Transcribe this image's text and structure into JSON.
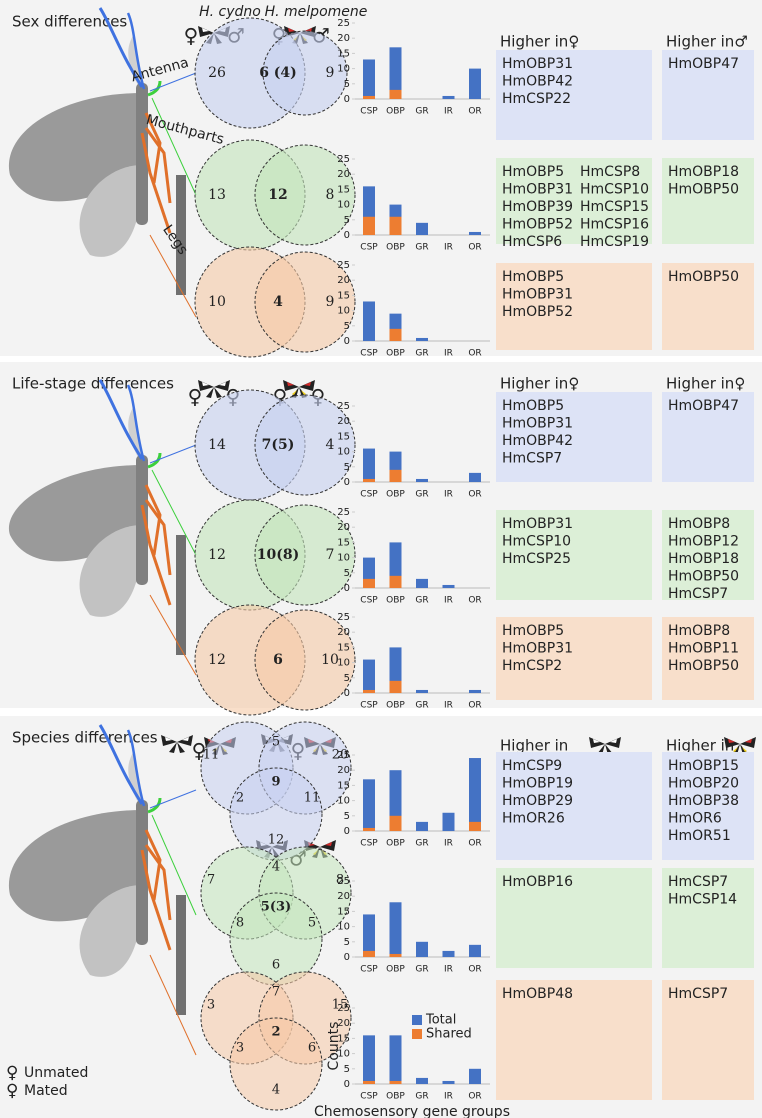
{
  "panels": [
    {
      "title": "Sex differences",
      "species": [
        "H. cydno",
        "H. melpomene"
      ],
      "symbols": [
        "♀",
        "♂",
        "♀",
        "♂"
      ],
      "higher": [
        "Higher in♀",
        "Higher in♂"
      ],
      "tissues": [
        "Antenna",
        "Mouthparts",
        "Legs"
      ],
      "rows": [
        {
          "venn": [
            "26",
            "6 (4)",
            "9"
          ],
          "left": [
            "HmOBP31",
            "HmOBP42",
            "HmCSP22"
          ],
          "right": [
            "HmOBP47"
          ]
        },
        {
          "venn": [
            "13",
            "12",
            "8"
          ],
          "left": [
            "HmOBP5",
            "HmOBP31",
            "HmOBP39",
            "HmOBP52",
            "HmCSP6",
            "HmCSP8",
            "HmCSP10",
            "HmCSP15",
            "HmCSP16",
            "HmCSP19"
          ],
          "right": [
            "HmOBP18",
            "HmOBP50"
          ]
        },
        {
          "venn": [
            "10",
            "4",
            "9"
          ],
          "left": [
            "HmOBP5",
            "HmOBP31",
            "HmOBP52"
          ],
          "right": [
            "HmOBP50"
          ]
        }
      ]
    },
    {
      "title": "Life-stage differences",
      "symbols": [
        "♀",
        "♀",
        "♀",
        "♀"
      ],
      "higher": [
        "Higher in♀",
        "Higher in♀"
      ],
      "rows": [
        {
          "venn": [
            "14",
            "7(5)",
            "4"
          ],
          "left": [
            "HmOBP5",
            "HmOBP31",
            "HmOBP42",
            "HmCSP7"
          ],
          "right": [
            "HmOBP47"
          ]
        },
        {
          "venn": [
            "12",
            "10(8)",
            "7"
          ],
          "left": [
            "HmOBP31",
            "HmCSP10",
            "HmCSP25"
          ],
          "right": [
            "HmOBP8",
            "HmOBP12",
            "HmOBP18",
            "HmOBP50",
            "HmCSP7"
          ]
        },
        {
          "venn": [
            "12",
            "6",
            "10"
          ],
          "left": [
            "HmOBP5",
            "HmOBP31",
            "HmCSP2"
          ],
          "right": [
            "HmOBP8",
            "HmOBP11",
            "HmOBP50"
          ]
        }
      ]
    },
    {
      "title": "Species differences",
      "symbols": [
        "♀",
        "♀",
        "♂"
      ],
      "higher": [
        "Higher in",
        "Higher in"
      ],
      "rows": [
        {
          "venn": [
            "11",
            "5",
            "20",
            "2",
            "9",
            "11",
            "12"
          ],
          "left": [
            "HmCSP9",
            "HmOBP19",
            "HmOBP29",
            "HmOR26"
          ],
          "right": [
            "HmOBP15",
            "HmOBP20",
            "HmOBP38",
            "HmOR6",
            "HmOR51"
          ]
        },
        {
          "venn": [
            "7",
            "4",
            "8",
            "8",
            "5(3)",
            "5",
            "6"
          ],
          "left": [
            "HmOBP16"
          ],
          "right": [
            "HmCSP7",
            "HmCSP14"
          ]
        },
        {
          "venn": [
            "3",
            "7",
            "15",
            "3",
            "2",
            "6",
            "4"
          ],
          "left": [
            "HmOBP48"
          ],
          "right": [
            "HmCSP7"
          ]
        }
      ]
    }
  ],
  "legend": {
    "symbols": [
      "♀",
      "♀"
    ],
    "labels": [
      "Unmated",
      "Mated"
    ]
  },
  "chart_data": [
    {
      "type": "bar",
      "categories": [
        "CSP",
        "OBP",
        "GR",
        "IR",
        "OR"
      ],
      "series": [
        {
          "color": "#4472c4",
          "values": [
            13,
            17,
            0,
            1,
            10
          ]
        },
        {
          "color": "#ed7d31",
          "values": [
            1,
            3,
            0,
            0,
            0
          ]
        }
      ],
      "ylim": [
        0,
        25
      ],
      "yticks": [
        0,
        5,
        10,
        15,
        20,
        25
      ]
    },
    {
      "type": "bar",
      "categories": [
        "CSP",
        "OBP",
        "GR",
        "IR",
        "OR"
      ],
      "series": [
        {
          "color": "#4472c4",
          "values": [
            16,
            10,
            4,
            0,
            1
          ]
        },
        {
          "color": "#ed7d31",
          "values": [
            6,
            6,
            0,
            0,
            0
          ]
        }
      ],
      "ylim": [
        0,
        25
      ],
      "yticks": [
        0,
        5,
        10,
        15,
        20,
        25
      ]
    },
    {
      "type": "bar",
      "categories": [
        "CSP",
        "OBP",
        "GR",
        "IR",
        "OR"
      ],
      "series": [
        {
          "color": "#4472c4",
          "values": [
            13,
            9,
            1,
            0,
            0
          ]
        },
        {
          "color": "#ed7d31",
          "values": [
            0,
            4,
            0,
            0,
            0
          ]
        }
      ],
      "ylim": [
        0,
        25
      ],
      "yticks": [
        0,
        5,
        10,
        15,
        20,
        25
      ]
    },
    {
      "type": "bar",
      "categories": [
        "CSP",
        "OBP",
        "GR",
        "IR",
        "OR"
      ],
      "series": [
        {
          "color": "#4472c4",
          "values": [
            11,
            10,
            1,
            0,
            3
          ]
        },
        {
          "color": "#ed7d31",
          "values": [
            1,
            4,
            0,
            0,
            0
          ]
        }
      ],
      "ylim": [
        0,
        25
      ],
      "yticks": [
        0,
        5,
        10,
        15,
        20,
        25
      ]
    },
    {
      "type": "bar",
      "categories": [
        "CSP",
        "OBP",
        "GR",
        "IR",
        "OR"
      ],
      "series": [
        {
          "color": "#4472c4",
          "values": [
            10,
            15,
            3,
            1,
            0
          ]
        },
        {
          "color": "#ed7d31",
          "values": [
            3,
            4,
            0,
            0,
            0
          ]
        }
      ],
      "ylim": [
        0,
        25
      ],
      "yticks": [
        0,
        5,
        10,
        15,
        20,
        25
      ]
    },
    {
      "type": "bar",
      "categories": [
        "CSP",
        "OBP",
        "GR",
        "IR",
        "OR"
      ],
      "series": [
        {
          "color": "#4472c4",
          "values": [
            11,
            15,
            1,
            0,
            1
          ]
        },
        {
          "color": "#ed7d31",
          "values": [
            1,
            4,
            0,
            0,
            0
          ]
        }
      ],
      "ylim": [
        0,
        25
      ],
      "yticks": [
        0,
        5,
        10,
        15,
        20,
        25
      ]
    },
    {
      "type": "bar",
      "categories": [
        "CSP",
        "OBP",
        "GR",
        "IR",
        "OR"
      ],
      "series": [
        {
          "color": "#4472c4",
          "values": [
            17,
            20,
            3,
            6,
            24
          ]
        },
        {
          "color": "#ed7d31",
          "values": [
            1,
            5,
            0,
            0,
            3
          ]
        }
      ],
      "ylim": [
        0,
        25
      ],
      "yticks": [
        0,
        5,
        10,
        15,
        20,
        25
      ]
    },
    {
      "type": "bar",
      "categories": [
        "CSP",
        "OBP",
        "GR",
        "IR",
        "OR"
      ],
      "series": [
        {
          "color": "#4472c4",
          "values": [
            14,
            18,
            5,
            2,
            4
          ]
        },
        {
          "color": "#ed7d31",
          "values": [
            2,
            1,
            0,
            0,
            0
          ]
        }
      ],
      "ylim": [
        0,
        25
      ],
      "yticks": [
        0,
        5,
        10,
        15,
        20,
        25
      ]
    },
    {
      "type": "bar",
      "categories": [
        "CSP",
        "OBP",
        "GR",
        "IR",
        "OR"
      ],
      "series": [
        {
          "name": "Total",
          "color": "#4472c4",
          "values": [
            16,
            16,
            2,
            1,
            5
          ]
        },
        {
          "name": "Shared",
          "color": "#ed7d31",
          "values": [
            1,
            1,
            0,
            0,
            0
          ]
        }
      ],
      "ylim": [
        0,
        25
      ],
      "yticks": [
        0,
        5,
        10,
        15,
        20,
        25
      ],
      "ylabel": "Counts",
      "xlabel": "Chemosensory gene groups",
      "legend": true
    }
  ]
}
